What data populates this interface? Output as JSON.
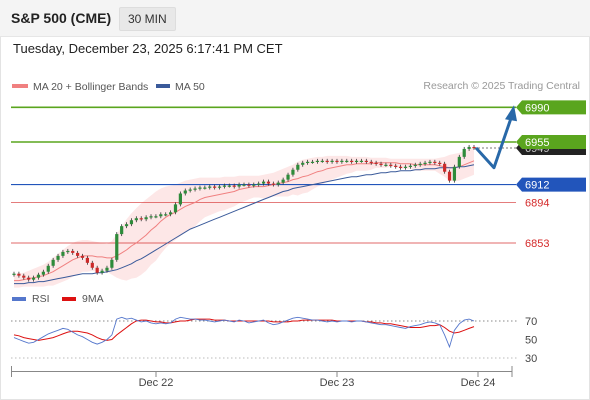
{
  "header": {
    "title": "S&P 500 (CME)",
    "timeframe": "30 MIN"
  },
  "timestamp": "Tuesday, December 23, 2025 6:17:41 PM CET",
  "copyright": "Research © 2025 Trading Central",
  "colors": {
    "support": "#2255bb",
    "resistance": "#5aa51e",
    "pivot_red": "#d42a2a",
    "ma50": "#3a5a9a",
    "ma20": "#f08080",
    "bands_fill": "#fde3e3",
    "up": "#2e8b3a",
    "down": "#cc2a2a",
    "rsi": "#5577cc",
    "rsi_ma": "#dd1111",
    "arrow": "#2868a8"
  },
  "chart_data": [
    {
      "type": "candlestick",
      "legend": [
        {
          "label": "MA 20 + Bollinger Bands",
          "color": "#f08080"
        },
        {
          "label": "MA 50",
          "color": "#3a5a9a"
        }
      ],
      "levels": [
        {
          "value": 6990,
          "label": "6990",
          "kind": "resistance"
        },
        {
          "value": 6955,
          "label": "6955",
          "kind": "resistance"
        },
        {
          "value": 6949,
          "label": "6949",
          "kind": "current"
        },
        {
          "value": 6912,
          "label": "6912",
          "kind": "pivot"
        },
        {
          "value": 6894,
          "label": "6894",
          "kind": "support"
        },
        {
          "value": 6853,
          "label": "6853",
          "kind": "support"
        }
      ],
      "x_labels": [
        "Dec 22",
        "Dec 23",
        "Dec 24"
      ],
      "close": [
        6822,
        6820,
        6818,
        6816,
        6818,
        6821,
        6824,
        6830,
        6836,
        6840,
        6844,
        6845,
        6843,
        6840,
        6838,
        6833,
        6828,
        6823,
        6825,
        6828,
        6836,
        6862,
        6870,
        6872,
        6876,
        6878,
        6877,
        6879,
        6880,
        6880,
        6882,
        6882,
        6884,
        6892,
        6903,
        6906,
        6907,
        6908,
        6909,
        6909,
        6910,
        6909,
        6910,
        6911,
        6911,
        6910,
        6912,
        6912,
        6911,
        6912,
        6913,
        6915,
        6913,
        6912,
        6914,
        6917,
        6922,
        6927,
        6932,
        6934,
        6935,
        6935,
        6936,
        6936,
        6935,
        6936,
        6935,
        6936,
        6936,
        6935,
        6936,
        6936,
        6935,
        6934,
        6933,
        6932,
        6932,
        6931,
        6930,
        6929,
        6930,
        6931,
        6932,
        6933,
        6934,
        6935,
        6934,
        6933,
        6925,
        6916,
        6930,
        6940,
        6948,
        6950,
        6949
      ],
      "ma20": [
        6815,
        6815,
        6816,
        6817,
        6818,
        6819,
        6820,
        6822,
        6824,
        6827,
        6830,
        6833,
        6836,
        6838,
        6840,
        6840,
        6840,
        6839,
        6839,
        6838,
        6838,
        6840,
        6843,
        6846,
        6850,
        6853,
        6857,
        6861,
        6866,
        6870,
        6875,
        6879,
        6882,
        6884,
        6887,
        6890,
        6892,
        6894,
        6897,
        6899,
        6900,
        6901,
        6902,
        6903,
        6904,
        6905,
        6907,
        6908,
        6909,
        6910,
        6910,
        6910,
        6911,
        6912,
        6913,
        6914,
        6915,
        6917,
        6918,
        6920,
        6921,
        6923,
        6925,
        6926,
        6928,
        6929,
        6930,
        6931,
        6932,
        6932,
        6933,
        6933,
        6933,
        6933,
        6934,
        6934,
        6934,
        6934,
        6934,
        6933,
        6933,
        6933,
        6932,
        6932,
        6932,
        6932,
        6932,
        6931,
        6930,
        6929,
        6929,
        6930,
        6932,
        6934,
        6936
      ],
      "band_upper": [
        6822,
        6822,
        6823,
        6825,
        6827,
        6829,
        6831,
        6834,
        6838,
        6842,
        6846,
        6850,
        6853,
        6855,
        6856,
        6856,
        6855,
        6854,
        6853,
        6852,
        6855,
        6862,
        6870,
        6877,
        6883,
        6888,
        6893,
        6897,
        6901,
        6905,
        6908,
        6910,
        6911,
        6912,
        6914,
        6916,
        6917,
        6918,
        6919,
        6919,
        6919,
        6919,
        6919,
        6920,
        6920,
        6920,
        6921,
        6921,
        6921,
        6921,
        6921,
        6922,
        6923,
        6924,
        6926,
        6928,
        6930,
        6932,
        6935,
        6937,
        6938,
        6939,
        6940,
        6940,
        6941,
        6941,
        6941,
        6941,
        6941,
        6940,
        6940,
        6940,
        6940,
        6939,
        6939,
        6939,
        6939,
        6938,
        6938,
        6938,
        6938,
        6938,
        6938,
        6938,
        6938,
        6938,
        6938,
        6939,
        6940,
        6942,
        6943,
        6944,
        6946,
        6948,
        6950
      ],
      "band_lower": [
        6808,
        6808,
        6809,
        6809,
        6809,
        6809,
        6809,
        6810,
        6810,
        6812,
        6814,
        6816,
        6819,
        6821,
        6824,
        6824,
        6825,
        6824,
        6825,
        6824,
        6821,
        6818,
        6816,
        6815,
        6817,
        6818,
        6821,
        6825,
        6831,
        6835,
        6842,
        6848,
        6853,
        6856,
        6860,
        6864,
        6867,
        6870,
        6875,
        6879,
        6881,
        6883,
        6885,
        6886,
        6888,
        6890,
        6893,
        6895,
        6897,
        6899,
        6899,
        6898,
        6899,
        6900,
        6900,
        6900,
        6900,
        6902,
        6901,
        6903,
        6904,
        6907,
        6910,
        6912,
        6915,
        6917,
        6919,
        6921,
        6923,
        6924,
        6926,
        6926,
        6926,
        6927,
        6929,
        6929,
        6929,
        6930,
        6930,
        6928,
        6928,
        6928,
        6926,
        6926,
        6926,
        6926,
        6926,
        6923,
        6920,
        6916,
        6915,
        6916,
        6918,
        6920,
        6922
      ],
      "ma50": [
        6812,
        6812,
        6812,
        6813,
        6813,
        6814,
        6814,
        6815,
        6816,
        6817,
        6818,
        6819,
        6820,
        6821,
        6822,
        6822,
        6822,
        6823,
        6823,
        6824,
        6825,
        6826,
        6828,
        6830,
        6832,
        6835,
        6837,
        6840,
        6843,
        6846,
        6849,
        6852,
        6855,
        6858,
        6861,
        6864,
        6867,
        6869,
        6871,
        6873,
        6875,
        6877,
        6879,
        6881,
        6883,
        6885,
        6887,
        6889,
        6891,
        6893,
        6895,
        6897,
        6899,
        6901,
        6903,
        6905,
        6906,
        6908,
        6909,
        6910,
        6911,
        6912,
        6913,
        6914,
        6915,
        6916,
        6917,
        6918,
        6919,
        6920,
        6920,
        6921,
        6922,
        6922,
        6923,
        6924,
        6924,
        6925,
        6925,
        6926,
        6926,
        6926,
        6927,
        6927,
        6928,
        6928,
        6928,
        6929,
        6929,
        6929,
        6929,
        6930,
        6930,
        6931,
        6932
      ],
      "forecast_arrow": [
        6949,
        6929,
        6990
      ]
    },
    {
      "type": "line",
      "legend": [
        {
          "label": "RSI",
          "color": "#5577cc"
        },
        {
          "label": "9MA",
          "color": "#dd1111"
        }
      ],
      "y_ticks": [
        70,
        50,
        30
      ],
      "rsi": [
        52,
        50,
        48,
        46,
        47,
        50,
        53,
        56,
        58,
        60,
        62,
        61,
        58,
        55,
        53,
        50,
        47,
        45,
        47,
        50,
        55,
        72,
        74,
        72,
        73,
        71,
        69,
        70,
        68,
        67,
        68,
        67,
        68,
        72,
        74,
        73,
        72,
        72,
        71,
        71,
        70,
        69,
        70,
        71,
        70,
        69,
        71,
        70,
        68,
        69,
        70,
        71,
        68,
        66,
        67,
        69,
        71,
        73,
        74,
        73,
        72,
        71,
        71,
        70,
        69,
        70,
        69,
        70,
        70,
        69,
        70,
        70,
        69,
        68,
        67,
        66,
        66,
        65,
        64,
        63,
        62,
        64,
        65,
        66,
        68,
        69,
        68,
        66,
        55,
        42,
        60,
        67,
        71,
        72,
        70
      ],
      "rsi_ma": [
        55,
        54,
        52,
        51,
        50,
        49,
        50,
        51,
        52,
        54,
        56,
        58,
        59,
        59,
        58,
        57,
        55,
        52,
        50,
        49,
        50,
        55,
        59,
        63,
        67,
        70,
        71,
        71,
        70,
        69,
        69,
        68,
        68,
        69,
        70,
        70,
        71,
        72,
        72,
        72,
        72,
        71,
        71,
        71,
        70,
        70,
        70,
        70,
        70,
        70,
        70,
        70,
        70,
        69,
        69,
        69,
        69,
        70,
        70,
        71,
        71,
        71,
        71,
        71,
        71,
        71,
        70,
        70,
        70,
        70,
        70,
        70,
        69,
        69,
        68,
        68,
        67,
        67,
        66,
        65,
        64,
        63,
        63,
        63,
        64,
        65,
        65,
        66,
        63,
        59,
        57,
        58,
        60,
        62,
        64
      ]
    }
  ]
}
